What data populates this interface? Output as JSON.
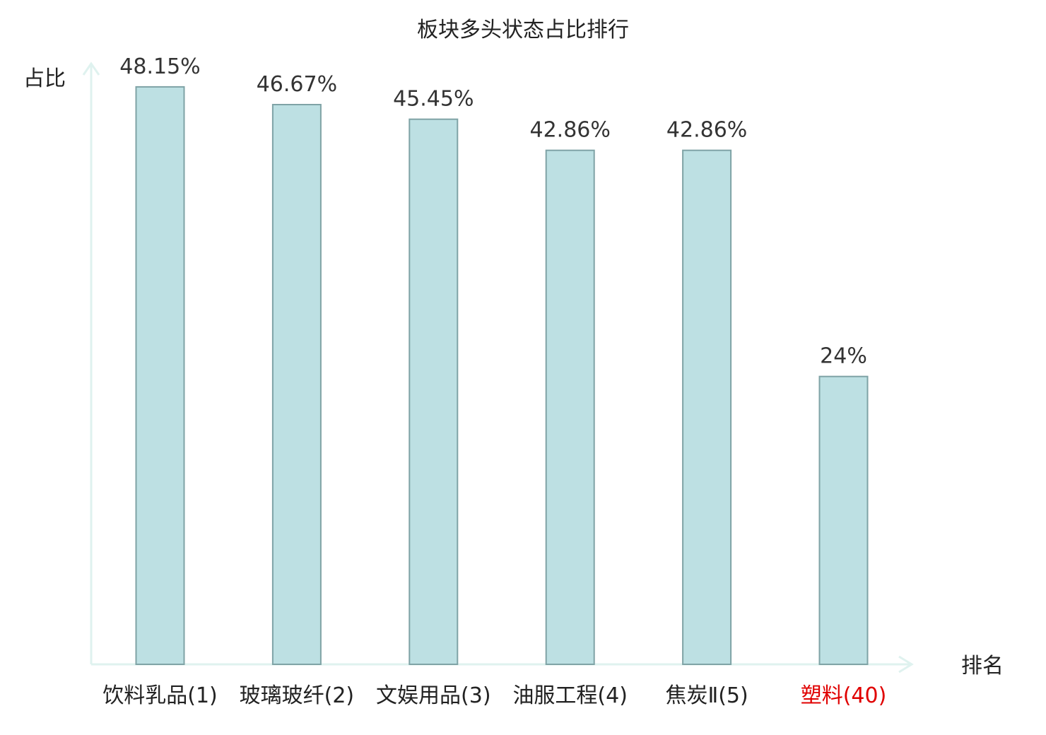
{
  "chart_data": {
    "type": "bar",
    "title": "板块多头状态占比排行",
    "xlabel": "排名",
    "ylabel": "占比",
    "categories": [
      "饮料乳品(1)",
      "玻璃玻纤(2)",
      "文娱用品(3)",
      "油服工程(4)",
      "焦炭Ⅱ(5)",
      "塑料(40)"
    ],
    "values": [
      48.15,
      46.67,
      45.45,
      42.86,
      42.86,
      24
    ],
    "value_labels": [
      "48.15%",
      "46.67%",
      "45.45%",
      "42.86%",
      "42.86%",
      "24%"
    ],
    "highlight_index": 5,
    "ylim": [
      0,
      50
    ],
    "grid": false,
    "legend": "none"
  },
  "colors": {
    "bar_fill": "#bde0e3",
    "bar_stroke": "#7fa3a6",
    "axis": "#dff2ef",
    "text": "#333333",
    "highlight_text": "#e00000"
  }
}
